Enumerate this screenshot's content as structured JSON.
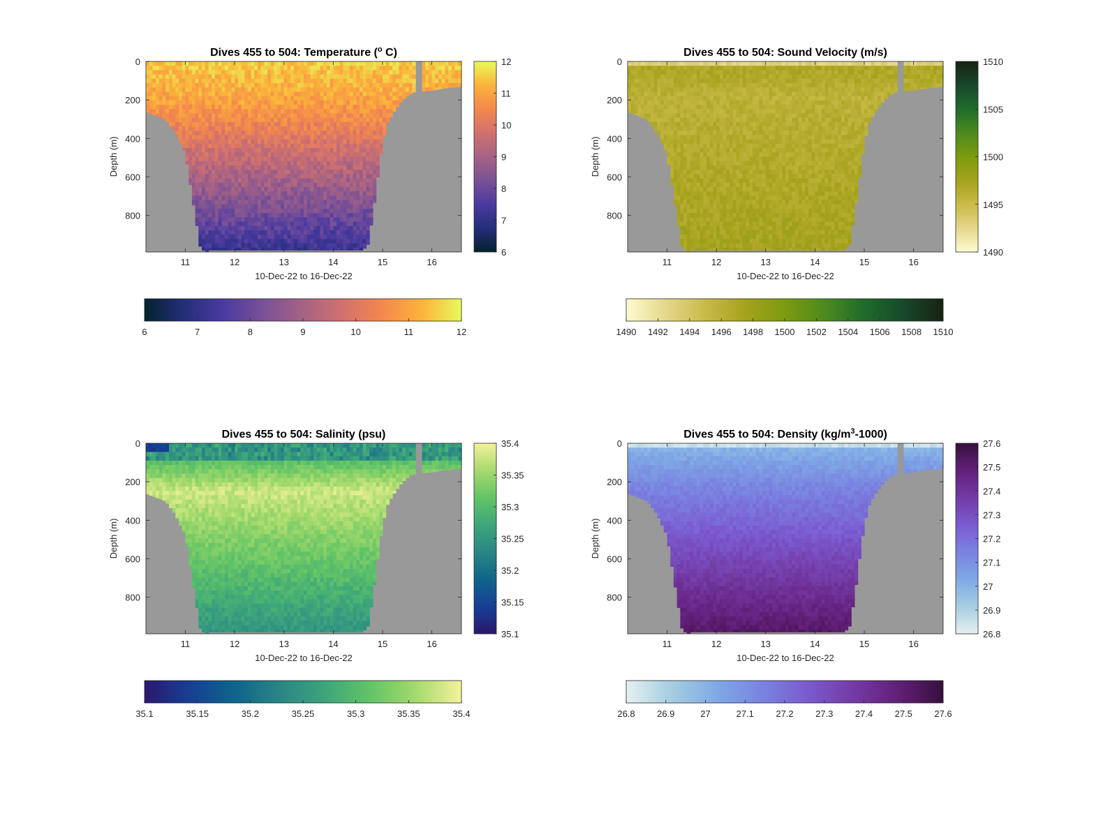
{
  "figure": {
    "background": "#ffffff",
    "mask_color": "#999999"
  },
  "chart_data": [
    {
      "id": "temperature",
      "type": "heatmap",
      "title_main": "Dives 455 to 504: Temperature (",
      "title_sup": "o",
      "title_tail": " C)",
      "xlabel": "10-Dec-22 to 16-Dec-22",
      "ylabel": "Depth (m)",
      "xlim": [
        10.2,
        16.6
      ],
      "ylim": [
        0,
        990
      ],
      "y_reversed": true,
      "xticks": [
        11,
        12,
        13,
        14,
        15,
        16
      ],
      "yticks": [
        0,
        200,
        400,
        600,
        800
      ],
      "colormap": "thermal",
      "clim": [
        6,
        12
      ],
      "colorbar_ticks": [
        "12",
        "11",
        "10",
        "9",
        "8",
        "7",
        "6"
      ],
      "h_colorbar_ticks": [
        "6",
        "7",
        "8",
        "9",
        "10",
        "11",
        "12"
      ],
      "profile": {
        "surface_value": 11.2,
        "deep_value": 7.2,
        "depth_range": [
          0,
          980
        ],
        "variability": 0.4
      }
    },
    {
      "id": "sound-velocity",
      "type": "heatmap",
      "title_main": "Dives 455 to 504: Sound Velocity (m/s)",
      "title_sup": "",
      "title_tail": "",
      "xlabel": "10-Dec-22 to 16-Dec-22",
      "ylabel": "Depth (m)",
      "xlim": [
        10.2,
        16.6
      ],
      "ylim": [
        0,
        990
      ],
      "y_reversed": true,
      "xticks": [
        11,
        12,
        13,
        14,
        15,
        16
      ],
      "yticks": [
        0,
        200,
        400,
        600,
        800
      ],
      "colormap": "speed",
      "clim": [
        1490,
        1510
      ],
      "colorbar_ticks": [
        "1510",
        "1505",
        "1500",
        "1495",
        "1490"
      ],
      "h_colorbar_ticks": [
        "1490",
        "1492",
        "1494",
        "1496",
        "1498",
        "1500",
        "1502",
        "1504",
        "1506",
        "1508",
        "1510"
      ],
      "profile": {
        "surface_value": 1495.5,
        "deep_value": 1497.5,
        "mid_value": 1496.0,
        "depth_range": [
          0,
          980
        ],
        "variability": 0.8
      }
    },
    {
      "id": "salinity",
      "type": "heatmap",
      "title_main": "Dives 455 to 504: Salinity (psu)",
      "title_sup": "",
      "title_tail": "",
      "xlabel": "10-Dec-22 to 16-Dec-22",
      "ylabel": "Depth (m)",
      "xlim": [
        10.2,
        16.6
      ],
      "ylim": [
        0,
        990
      ],
      "y_reversed": true,
      "xticks": [
        11,
        12,
        13,
        14,
        15,
        16
      ],
      "yticks": [
        0,
        200,
        400,
        600,
        800
      ],
      "colormap": "haline",
      "clim": [
        35.1,
        35.4
      ],
      "colorbar_ticks": [
        "35.4",
        "35.35",
        "35.3",
        "35.25",
        "35.2",
        "35.15",
        "35.1"
      ],
      "h_colorbar_ticks": [
        "35.1",
        "35.15",
        "35.2",
        "35.25",
        "35.3",
        "35.35",
        "35.4"
      ],
      "profile": {
        "surface_value": 35.25,
        "max_value": 35.38,
        "max_depth": 250,
        "deep_value": 35.25,
        "depth_range": [
          0,
          980
        ],
        "variability": 0.03
      }
    },
    {
      "id": "density",
      "type": "heatmap",
      "title_main": "Dives 455 to 504: Density (kg/m",
      "title_sup": "3",
      "title_tail": "-1000)",
      "xlabel": "10-Dec-22 to 16-Dec-22",
      "ylabel": "Depth (m)",
      "xlim": [
        10.2,
        16.6
      ],
      "ylim": [
        0,
        990
      ],
      "y_reversed": true,
      "xticks": [
        11,
        12,
        13,
        14,
        15,
        16
      ],
      "yticks": [
        0,
        200,
        400,
        600,
        800
      ],
      "colormap": "dense",
      "clim": [
        26.8,
        27.6
      ],
      "colorbar_ticks": [
        "27.6",
        "27.5",
        "27.4",
        "27.3",
        "27.2",
        "27.1",
        "27",
        "26.9",
        "26.8"
      ],
      "h_colorbar_ticks": [
        "26.8",
        "26.9",
        "27",
        "27.1",
        "27.2",
        "27.3",
        "27.4",
        "27.5",
        "27.6"
      ],
      "profile": {
        "surface_value": 27.0,
        "deep_value": 27.52,
        "depth_range": [
          0,
          980
        ],
        "variability": 0.03
      }
    }
  ],
  "colormaps": {
    "thermal": [
      "#04232e",
      "#242e7a",
      "#4b3aa0",
      "#7a5196",
      "#a66285",
      "#d1716e",
      "#f4884d",
      "#fbb33a",
      "#e8fa5b"
    ],
    "speed": [
      "#fdfbd0",
      "#e5d78b",
      "#c9ba48",
      "#a5a21c",
      "#7c9b0e",
      "#4d8a1f",
      "#1f6c2a",
      "#17482a",
      "#172213"
    ],
    "haline": [
      "#2a186c",
      "#173f96",
      "#0e658b",
      "#2a8685",
      "#3ca67b",
      "#63c466",
      "#a5da6c",
      "#f4f29c"
    ],
    "dense": [
      "#e6f0f0",
      "#a5cde1",
      "#7fa9e6",
      "#7a83e0",
      "#7b5bd0",
      "#743ba6",
      "#621f79",
      "#36103c"
    ]
  },
  "mask": {
    "days": [
      10.2,
      10.6,
      10.8,
      11.0,
      11.1,
      11.2,
      11.3,
      11.4,
      11.5,
      14.6,
      14.7,
      14.8,
      14.9,
      15.0,
      15.1,
      15.2,
      15.4,
      15.6,
      15.8,
      16.0,
      16.2,
      16.4,
      16.6
    ],
    "max_depth": [
      260,
      300,
      370,
      480,
      640,
      800,
      960,
      990,
      980,
      980,
      950,
      800,
      600,
      420,
      320,
      270,
      200,
      160,
      155,
      150,
      140,
      135,
      130
    ],
    "gap_column": [
      15.7,
      15.8
    ]
  }
}
